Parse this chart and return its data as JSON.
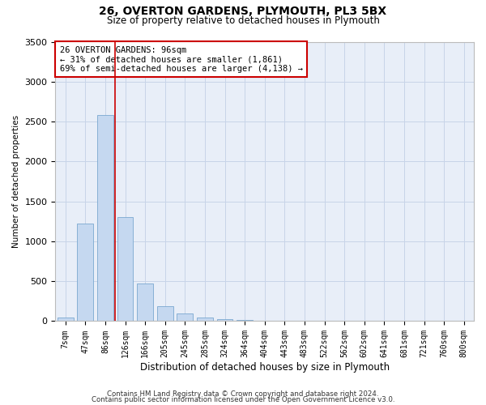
{
  "title_line1": "26, OVERTON GARDENS, PLYMOUTH, PL3 5BX",
  "title_line2": "Size of property relative to detached houses in Plymouth",
  "xlabel": "Distribution of detached houses by size in Plymouth",
  "ylabel": "Number of detached properties",
  "categories": [
    "7sqm",
    "47sqm",
    "86sqm",
    "126sqm",
    "166sqm",
    "205sqm",
    "245sqm",
    "285sqm",
    "324sqm",
    "364sqm",
    "404sqm",
    "443sqm",
    "483sqm",
    "522sqm",
    "562sqm",
    "602sqm",
    "641sqm",
    "681sqm",
    "721sqm",
    "760sqm",
    "800sqm"
  ],
  "values": [
    50,
    1220,
    2580,
    1300,
    470,
    185,
    100,
    50,
    30,
    15,
    0,
    0,
    0,
    0,
    0,
    0,
    0,
    0,
    0,
    0,
    0
  ],
  "bar_color": "#c5d8f0",
  "bar_edgecolor": "#7aa8d0",
  "redline_x": 2.5,
  "annotation_text": "26 OVERTON GARDENS: 96sqm\n← 31% of detached houses are smaller (1,861)\n69% of semi-detached houses are larger (4,138) →",
  "annotation_box_edgecolor": "#cc0000",
  "redline_color": "#cc0000",
  "ylim": [
    0,
    3500
  ],
  "yticks": [
    0,
    500,
    1000,
    1500,
    2000,
    2500,
    3000,
    3500
  ],
  "footer_line1": "Contains HM Land Registry data © Crown copyright and database right 2024.",
  "footer_line2": "Contains public sector information licensed under the Open Government Licence v3.0.",
  "bg_color": "#ffffff",
  "grid_color": "#c8d4e8",
  "plot_bg_color": "#e8eef8"
}
